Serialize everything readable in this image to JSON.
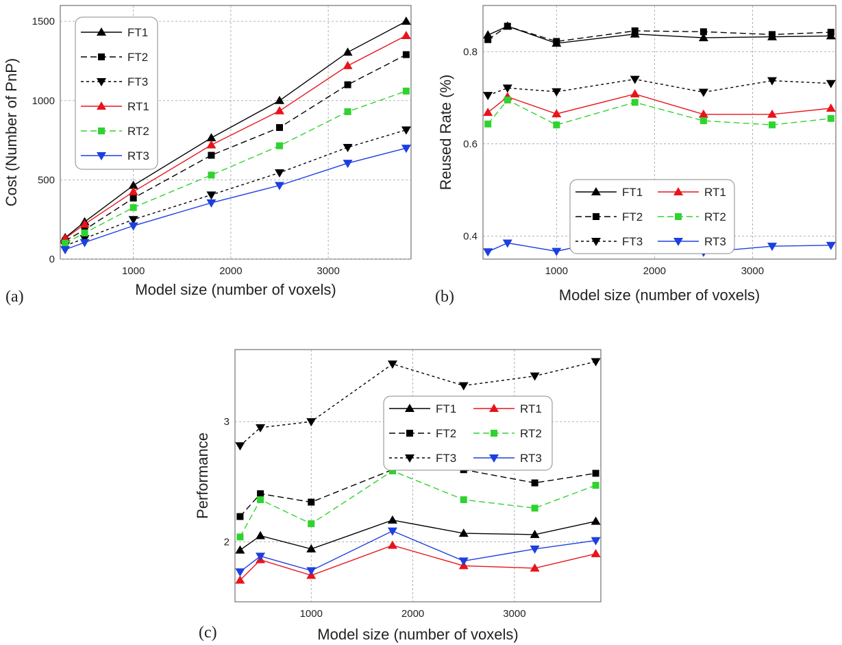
{
  "chart_data": [
    {
      "type": "line",
      "panel_tag": "(a)",
      "xlabel": "Model size (number of voxels)",
      "ylabel": "Cost (Number of PnP)",
      "xlim": [
        250,
        3850
      ],
      "ylim": [
        0,
        1600
      ],
      "xticks": [
        1000,
        2000,
        3000
      ],
      "yticks": [
        0,
        500,
        1000,
        1500
      ],
      "grid": true,
      "legend_position": "top-left",
      "x": [
        300,
        500,
        1000,
        1800,
        2500,
        3200,
        3800
      ],
      "series": [
        {
          "name": "FT1",
          "color": "#000000",
          "dash": "solid",
          "marker": "triangle-up",
          "values": [
            135,
            235,
            465,
            765,
            1000,
            1305,
            1500
          ]
        },
        {
          "name": "FT2",
          "color": "#000000",
          "dash": "dashed",
          "marker": "square",
          "values": [
            115,
            185,
            385,
            655,
            830,
            1100,
            1290
          ]
        },
        {
          "name": "FT3",
          "color": "#000000",
          "dash": "dotted",
          "marker": "triangle-down",
          "values": [
            85,
            130,
            250,
            405,
            545,
            705,
            815
          ]
        },
        {
          "name": "RT1",
          "color": "#e8141b",
          "dash": "solid",
          "marker": "triangle-up",
          "values": [
            130,
            220,
            425,
            720,
            935,
            1220,
            1410
          ]
        },
        {
          "name": "RT2",
          "color": "#2fd32f",
          "dash": "dashed",
          "marker": "square",
          "values": [
            100,
            165,
            325,
            530,
            715,
            930,
            1060
          ]
        },
        {
          "name": "RT3",
          "color": "#1d3fe0",
          "dash": "solid",
          "marker": "triangle-down",
          "values": [
            60,
            105,
            210,
            355,
            465,
            605,
            700
          ]
        }
      ]
    },
    {
      "type": "line",
      "panel_tag": "(b)",
      "xlabel": "Model size (number of voxels)",
      "ylabel": "Reused Rate (%)",
      "xlim": [
        250,
        3850
      ],
      "ylim": [
        0.35,
        0.9
      ],
      "xticks": [
        1000,
        2000,
        3000
      ],
      "yticks": [
        0.4,
        0.6,
        0.8
      ],
      "grid": true,
      "legend_position": "center-right",
      "x": [
        300,
        500,
        1000,
        1800,
        2500,
        3200,
        3800
      ],
      "series": [
        {
          "name": "FT1",
          "color": "#000000",
          "dash": "solid",
          "marker": "triangle-up",
          "values": [
            0.836,
            0.855,
            0.818,
            0.838,
            0.83,
            0.832,
            0.834
          ]
        },
        {
          "name": "FT2",
          "color": "#000000",
          "dash": "dashed",
          "marker": "square",
          "values": [
            0.826,
            0.855,
            0.822,
            0.845,
            0.843,
            0.837,
            0.842
          ]
        },
        {
          "name": "FT3",
          "color": "#000000",
          "dash": "dotted",
          "marker": "triangle-down",
          "values": [
            0.705,
            0.721,
            0.713,
            0.74,
            0.712,
            0.737,
            0.731
          ]
        },
        {
          "name": "RT1",
          "color": "#e8141b",
          "dash": "solid",
          "marker": "triangle-up",
          "values": [
            0.668,
            0.702,
            0.665,
            0.708,
            0.664,
            0.664,
            0.677
          ]
        },
        {
          "name": "RT2",
          "color": "#2fd32f",
          "dash": "dashed",
          "marker": "square",
          "values": [
            0.643,
            0.695,
            0.641,
            0.69,
            0.65,
            0.641,
            0.655
          ]
        },
        {
          "name": "RT3",
          "color": "#1d3fe0",
          "dash": "solid",
          "marker": "triangle-down",
          "values": [
            0.366,
            0.385,
            0.367,
            0.404,
            0.365,
            0.378,
            0.38
          ]
        }
      ]
    },
    {
      "type": "line",
      "panel_tag": "(c)",
      "xlabel": "Model size (number of voxels)",
      "ylabel": "Performance",
      "xlim": [
        250,
        3850
      ],
      "ylim": [
        1.5,
        3.6
      ],
      "xticks": [
        1000,
        2000,
        3000
      ],
      "yticks": [
        2,
        3
      ],
      "grid": true,
      "legend_position": "top-right",
      "x": [
        300,
        500,
        1000,
        1800,
        2500,
        3200,
        3800
      ],
      "series": [
        {
          "name": "FT1",
          "color": "#000000",
          "dash": "solid",
          "marker": "triangle-up",
          "values": [
            1.93,
            2.05,
            1.94,
            2.18,
            2.07,
            2.06,
            2.17
          ]
        },
        {
          "name": "FT2",
          "color": "#000000",
          "dash": "dashed",
          "marker": "square",
          "values": [
            2.21,
            2.4,
            2.33,
            2.6,
            2.6,
            2.49,
            2.57
          ]
        },
        {
          "name": "FT3",
          "color": "#000000",
          "dash": "dotted",
          "marker": "triangle-down",
          "values": [
            2.8,
            2.95,
            3.0,
            3.48,
            3.3,
            3.38,
            3.5
          ]
        },
        {
          "name": "RT1",
          "color": "#e8141b",
          "dash": "solid",
          "marker": "triangle-up",
          "values": [
            1.68,
            1.85,
            1.72,
            1.97,
            1.8,
            1.78,
            1.9
          ]
        },
        {
          "name": "RT2",
          "color": "#2fd32f",
          "dash": "dashed",
          "marker": "square",
          "values": [
            2.04,
            2.35,
            2.15,
            2.59,
            2.35,
            2.28,
            2.47
          ]
        },
        {
          "name": "RT3",
          "color": "#1d3fe0",
          "dash": "solid",
          "marker": "triangle-down",
          "values": [
            1.75,
            1.88,
            1.76,
            2.09,
            1.84,
            1.94,
            2.01
          ]
        }
      ]
    }
  ]
}
